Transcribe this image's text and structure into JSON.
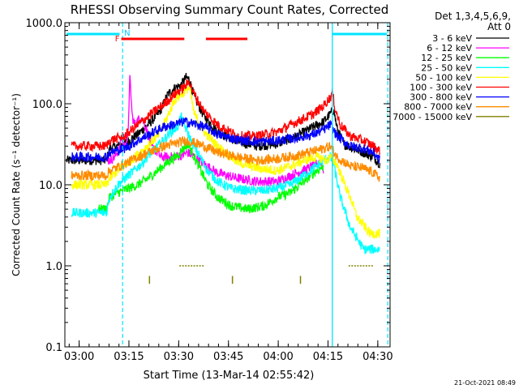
{
  "chart_data": {
    "type": "line",
    "title": "RHESSI Observing Summary Count Rates, Corrected",
    "xlabel": "Start Time (13-Mar-14 02:55:42)",
    "ylabel": "Corrected Count Rate (s⁻¹ detector⁻¹)",
    "y_scale": "log",
    "xlim": [
      0,
      98
    ],
    "ylim": [
      0.1,
      1000
    ],
    "x_ticks": [
      {
        "t": 4.3,
        "label": "03:00"
      },
      {
        "t": 19.3,
        "label": "03:15"
      },
      {
        "t": 34.3,
        "label": "03:30"
      },
      {
        "t": 49.3,
        "label": "03:45"
      },
      {
        "t": 64.3,
        "label": "04:00"
      },
      {
        "t": 79.3,
        "label": "04:15"
      },
      {
        "t": 94.3,
        "label": "04:30"
      }
    ],
    "y_ticks": [
      {
        "v": 0.1,
        "label": "0.1"
      },
      {
        "v": 1,
        "label": "1.0"
      },
      {
        "v": 10,
        "label": "10.0"
      },
      {
        "v": 100,
        "label": "100.0"
      },
      {
        "v": 1000,
        "label": "1000.0"
      }
    ],
    "legend": {
      "header1": "Det 1,3,4,5,6,9,",
      "header2": "Att 0",
      "position": "right"
    },
    "series": [
      {
        "name": "3 - 6 keV",
        "color": "#000000",
        "points": [
          [
            0.5,
            20
          ],
          [
            12.5,
            20
          ],
          [
            13.5,
            28
          ],
          [
            18,
            32
          ],
          [
            22,
            42
          ],
          [
            26,
            60
          ],
          [
            29,
            85
          ],
          [
            31,
            130
          ],
          [
            33,
            155
          ],
          [
            35,
            170
          ],
          [
            36.5,
            210
          ],
          [
            37.5,
            200
          ],
          [
            39,
            120
          ],
          [
            42,
            70
          ],
          [
            46,
            45
          ],
          [
            52,
            34
          ],
          [
            58,
            30
          ],
          [
            64,
            32
          ],
          [
            70,
            40
          ],
          [
            75,
            52
          ],
          [
            78,
            60
          ],
          [
            80,
            75
          ],
          [
            81,
            85
          ],
          [
            82,
            50
          ],
          [
            84,
            32
          ],
          [
            87,
            28
          ],
          [
            90,
            25
          ],
          [
            93,
            22
          ],
          [
            95,
            18
          ]
        ]
      },
      {
        "name": "6 - 12 keV",
        "color": "#ff00ff",
        "points": [
          [
            12.5,
            20
          ],
          [
            13.5,
            20
          ],
          [
            15,
            22
          ],
          [
            16.5,
            28
          ],
          [
            17,
            38
          ],
          [
            18,
            30
          ],
          [
            19,
            40
          ],
          [
            19.6,
            210
          ],
          [
            20.3,
            70
          ],
          [
            21,
            55
          ],
          [
            23,
            70
          ],
          [
            24.5,
            50
          ],
          [
            26,
            30
          ],
          [
            29,
            22
          ],
          [
            32,
            22
          ],
          [
            35,
            23
          ],
          [
            37,
            25
          ],
          [
            39,
            22
          ],
          [
            42,
            18
          ],
          [
            46,
            14
          ],
          [
            52,
            12
          ],
          [
            58,
            11
          ],
          [
            64,
            11
          ],
          [
            70,
            14
          ],
          [
            75,
            17
          ],
          [
            77,
            20
          ],
          [
            78,
            15
          ]
        ]
      },
      {
        "name": "12 - 25 keV",
        "color": "#00ff00",
        "points": [
          [
            10,
            5
          ],
          [
            12.5,
            5
          ],
          [
            13.5,
            7
          ],
          [
            16,
            8
          ],
          [
            19,
            9
          ],
          [
            22,
            10
          ],
          [
            25,
            12
          ],
          [
            28,
            15
          ],
          [
            31,
            19
          ],
          [
            34,
            23
          ],
          [
            36,
            29
          ],
          [
            37,
            32
          ],
          [
            39,
            22
          ],
          [
            41,
            15
          ],
          [
            43,
            10
          ],
          [
            46,
            7
          ],
          [
            50,
            5.5
          ],
          [
            55,
            5
          ],
          [
            60,
            5.5
          ],
          [
            64,
            7
          ],
          [
            68,
            8
          ],
          [
            72,
            11
          ],
          [
            75,
            14
          ],
          [
            77,
            16
          ],
          [
            78,
            17
          ]
        ]
      },
      {
        "name": "25 - 50 keV",
        "color": "#00ffff",
        "points": [
          [
            2,
            4.5
          ],
          [
            12.5,
            4.5
          ],
          [
            13.5,
            7
          ],
          [
            16,
            10
          ],
          [
            18,
            12
          ],
          [
            20,
            14
          ],
          [
            23,
            18
          ],
          [
            26,
            25
          ],
          [
            29,
            33
          ],
          [
            32,
            45
          ],
          [
            34,
            52
          ],
          [
            35,
            70
          ],
          [
            36,
            55
          ],
          [
            38,
            35
          ],
          [
            40,
            25
          ],
          [
            43,
            15
          ],
          [
            46,
            11
          ],
          [
            50,
            9
          ],
          [
            55,
            8.5
          ],
          [
            60,
            8.5
          ],
          [
            64,
            9
          ],
          [
            68,
            10
          ],
          [
            72,
            13
          ],
          [
            75,
            16
          ],
          [
            78,
            20
          ],
          [
            80,
            22
          ],
          [
            81,
            18
          ],
          [
            83,
            7
          ],
          [
            86,
            3
          ],
          [
            90,
            1.6
          ],
          [
            95,
            1.6
          ]
        ]
      },
      {
        "name": "50 - 100 keV",
        "color": "#ffff00",
        "points": [
          [
            2,
            10
          ],
          [
            12.5,
            10
          ],
          [
            13.5,
            12
          ],
          [
            16,
            15
          ],
          [
            20,
            20
          ],
          [
            24,
            28
          ],
          [
            28,
            40
          ],
          [
            31,
            70
          ],
          [
            33,
            110
          ],
          [
            34,
            120
          ],
          [
            36,
            140
          ],
          [
            37.5,
            160
          ],
          [
            39,
            75
          ],
          [
            42,
            45
          ],
          [
            46,
            30
          ],
          [
            52,
            19
          ],
          [
            58,
            16
          ],
          [
            64,
            15
          ],
          [
            68,
            17
          ],
          [
            72,
            20
          ],
          [
            76,
            22
          ],
          [
            79,
            20
          ],
          [
            80,
            22
          ],
          [
            82,
            18
          ],
          [
            84,
            11
          ],
          [
            86,
            7
          ],
          [
            88,
            4
          ],
          [
            92,
            2.5
          ],
          [
            95,
            2.5
          ]
        ]
      },
      {
        "name": "100 - 300 keV",
        "color": "#ff0000",
        "points": [
          [
            2,
            30
          ],
          [
            12.5,
            30
          ],
          [
            13.5,
            35
          ],
          [
            18,
            40
          ],
          [
            22,
            55
          ],
          [
            26,
            75
          ],
          [
            30,
            100
          ],
          [
            33,
            130
          ],
          [
            36,
            160
          ],
          [
            37.5,
            190
          ],
          [
            39,
            130
          ],
          [
            42,
            80
          ],
          [
            46,
            55
          ],
          [
            52,
            40
          ],
          [
            58,
            40
          ],
          [
            64,
            45
          ],
          [
            70,
            60
          ],
          [
            75,
            75
          ],
          [
            78,
            95
          ],
          [
            80,
            120
          ],
          [
            80.6,
            135
          ],
          [
            81.5,
            85
          ],
          [
            83,
            55
          ],
          [
            86,
            40
          ],
          [
            90,
            35
          ],
          [
            93,
            30
          ],
          [
            95,
            26
          ]
        ]
      },
      {
        "name": "300 - 800 keV",
        "color": "#0000ff",
        "points": [
          [
            2,
            22
          ],
          [
            12.5,
            22
          ],
          [
            13.5,
            25
          ],
          [
            18,
            28
          ],
          [
            22,
            35
          ],
          [
            26,
            43
          ],
          [
            30,
            52
          ],
          [
            34,
            57
          ],
          [
            36,
            60
          ],
          [
            38,
            58
          ],
          [
            42,
            52
          ],
          [
            46,
            42
          ],
          [
            52,
            36
          ],
          [
            58,
            34
          ],
          [
            64,
            35
          ],
          [
            70,
            38
          ],
          [
            75,
            42
          ],
          [
            78,
            48
          ],
          [
            80,
            55
          ],
          [
            82,
            40
          ],
          [
            86,
            30
          ],
          [
            90,
            28
          ],
          [
            93,
            25
          ],
          [
            95,
            20
          ]
        ]
      },
      {
        "name": "800 - 7000 keV",
        "color": "#ff8c00",
        "points": [
          [
            2,
            13
          ],
          [
            12.5,
            13
          ],
          [
            13.5,
            15
          ],
          [
            18,
            18
          ],
          [
            22,
            22
          ],
          [
            26,
            26
          ],
          [
            30,
            30
          ],
          [
            34,
            33
          ],
          [
            36,
            35
          ],
          [
            38,
            34
          ],
          [
            42,
            30
          ],
          [
            46,
            25
          ],
          [
            52,
            22
          ],
          [
            58,
            20
          ],
          [
            64,
            21
          ],
          [
            70,
            23
          ],
          [
            75,
            26
          ],
          [
            78,
            28
          ],
          [
            80,
            30
          ],
          [
            82,
            22
          ],
          [
            86,
            17
          ],
          [
            90,
            16
          ],
          [
            93,
            14
          ],
          [
            95,
            12
          ]
        ]
      },
      {
        "name": "7000 - 15000 keV",
        "color": "#808000",
        "points": []
      }
    ],
    "brown_short_dash_segments": [
      {
        "x0": 34.5,
        "x1": 42,
        "y": 1.0
      },
      {
        "x0": 85.5,
        "x1": 93,
        "y": 1.0
      }
    ],
    "brown_spikes": [
      {
        "x": 25.5,
        "y0": 0.6,
        "y1": 0.75
      },
      {
        "x": 50.5,
        "y0": 0.6,
        "y1": 0.75
      },
      {
        "x": 71,
        "y0": 0.6,
        "y1": 0.75
      }
    ],
    "flag_bars": {
      "cyan_top": [
        [
          0.5,
          16.5
        ],
        [
          80.5,
          97
        ]
      ],
      "red_top": [
        [
          17,
          36
        ],
        [
          42.5,
          55
        ]
      ],
      "F_label": {
        "t": 15.8,
        "text": "F"
      },
      "N_label": {
        "t": 18.8,
        "text": "N"
      }
    },
    "vertical_markers": {
      "solid_cyan": [
        80.6
      ],
      "dashed_cyan": [
        17.4,
        97.3
      ]
    },
    "footer_date": "21-Oct-2021 08:49"
  }
}
